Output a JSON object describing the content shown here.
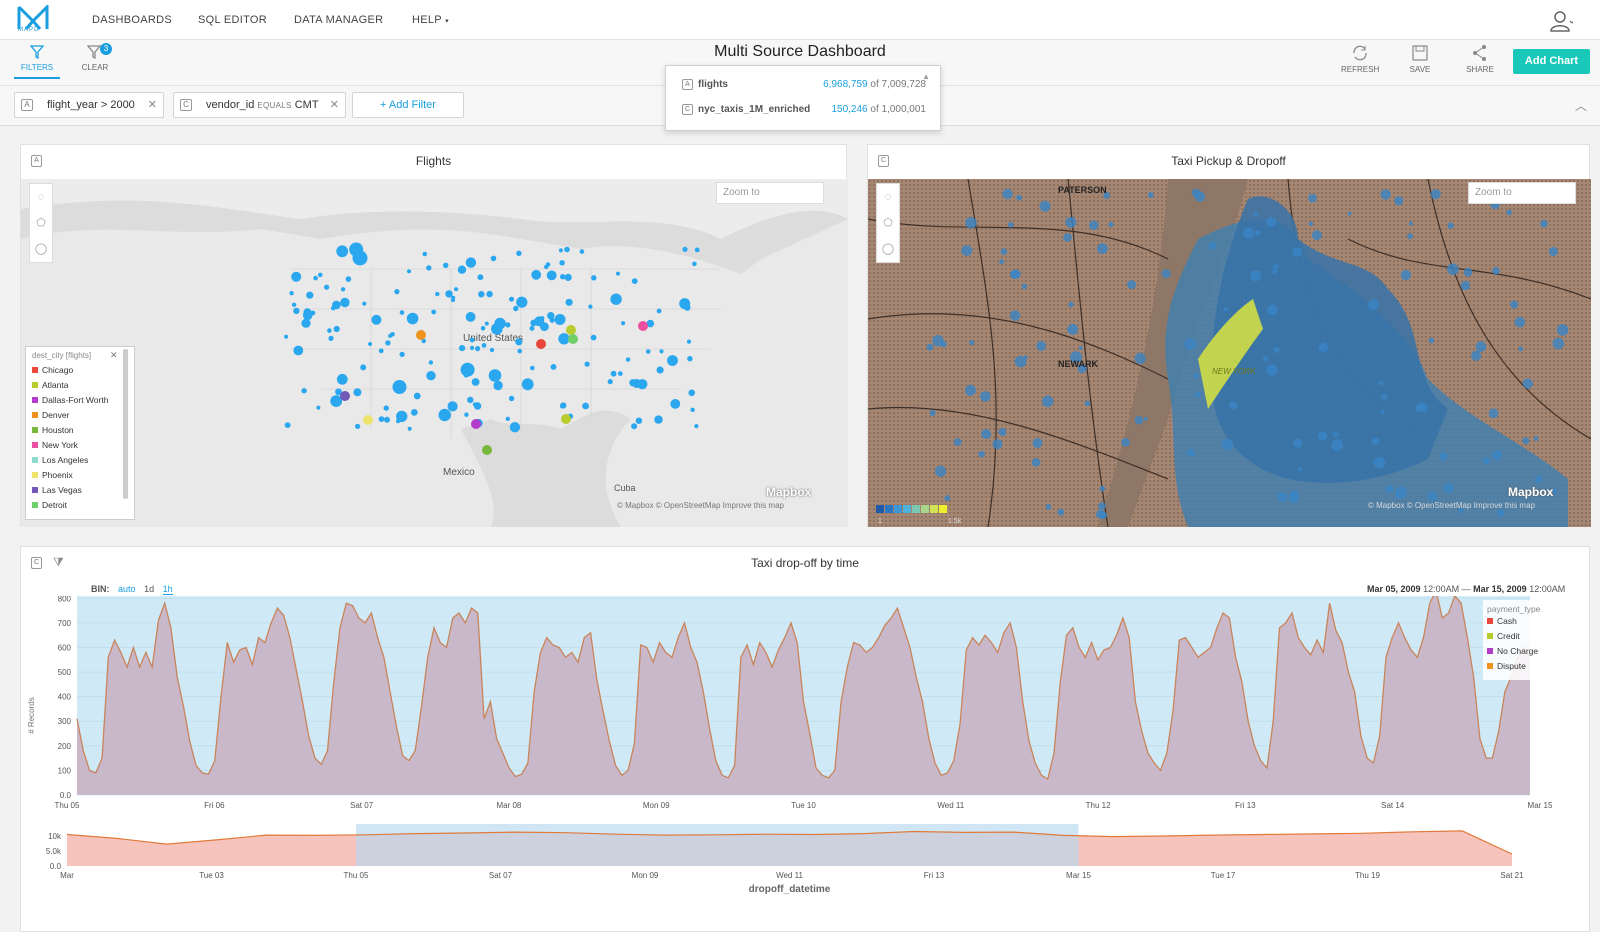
{
  "nav": {
    "logo_text": "MAPD",
    "links": [
      "DASHBOARDS",
      "SQL EDITOR",
      "DATA MANAGER",
      "HELP"
    ]
  },
  "toolbar": {
    "filters_label": "FILTERS",
    "clear_label": "CLEAR",
    "clear_badge": "3",
    "title": "Multi Source Dashboard",
    "refresh_label": "REFRESH",
    "save_label": "SAVE",
    "share_label": "SHARE",
    "add_chart_label": "Add Chart"
  },
  "filters": [
    {
      "field": "flight_year",
      "op": ">",
      "value": "2000"
    },
    {
      "field": "vendor_id",
      "op": "EQUALS",
      "value": "CMT"
    }
  ],
  "add_filter_label": "+ Add Filter",
  "counts": [
    {
      "table": "flights",
      "filtered": "6,968,759",
      "total": "of 7,009,728"
    },
    {
      "table": "nyc_taxis_1M_enriched",
      "filtered": "150,246",
      "total": "of 1,000,001"
    }
  ],
  "flights_panel": {
    "title": "Flights",
    "zoom_placeholder": "Zoom to",
    "labels": {
      "us": "United States",
      "mexico": "Mexico",
      "cuba": "Cuba"
    },
    "attribution": "© Mapbox  © OpenStreetMap  Improve this map",
    "mapbox": "Mapbox",
    "legend_title": "dest_city [flights]",
    "legend": [
      {
        "name": "Chicago",
        "color": "#e8473b"
      },
      {
        "name": "Atlanta",
        "color": "#b9cc2e"
      },
      {
        "name": "Dallas-Fort Worth",
        "color": "#b23bc9"
      },
      {
        "name": "Denver",
        "color": "#f0931e"
      },
      {
        "name": "Houston",
        "color": "#79b83c"
      },
      {
        "name": "New York",
        "color": "#ea4fa0"
      },
      {
        "name": "Los Angeles",
        "color": "#8fdccf"
      },
      {
        "name": "Phoenix",
        "color": "#eee46b"
      },
      {
        "name": "Las Vegas",
        "color": "#7358b8"
      },
      {
        "name": "Detroit",
        "color": "#6fcf6b"
      }
    ]
  },
  "taxi_panel": {
    "title": "Taxi Pickup & Dropoff",
    "zoom_placeholder": "Zoom to",
    "labels": {
      "paterson": "PATERSON",
      "newark": "NEWARK",
      "newyork": "NEW YORK"
    },
    "attribution": "© Mapbox  © OpenStreetMap  Improve this map",
    "mapbox": "Mapbox",
    "scale_min": "1",
    "scale_max": "1.5k",
    "scale_colors": [
      "#1e5aa8",
      "#2a78c4",
      "#3b97d8",
      "#4fb3dc",
      "#7bc7b2",
      "#a9d68a",
      "#d1e255",
      "#eef02c"
    ]
  },
  "time_panel": {
    "title": "Taxi drop-off by time",
    "bin_label": "BIN:",
    "bin_options": [
      "auto",
      "1d",
      "1h"
    ],
    "range_start": "Mar 05, 2009",
    "range_start_time": "12:00AM",
    "range_sep": "—",
    "range_end": "Mar 15, 2009",
    "range_end_time": "12:00AM",
    "legend_title": "payment_type",
    "legend": [
      {
        "name": "Cash",
        "color": "#e8473b"
      },
      {
        "name": "Credit",
        "color": "#b9cc2e"
      },
      {
        "name": "No Charge",
        "color": "#b23bc9"
      },
      {
        "name": "Dispute",
        "color": "#f0931e"
      }
    ]
  },
  "chart_data": [
    {
      "type": "area",
      "title": "Taxi drop-off by time",
      "xlabel": "",
      "ylabel": "# Records",
      "ylim": [
        0,
        850
      ],
      "yticks": [
        "0.0",
        "100",
        "200",
        "300",
        "400",
        "500",
        "600",
        "700",
        "800"
      ],
      "xticks": [
        "Thu 05",
        "Fri 06",
        "Sat 07",
        "Mar 08",
        "Mon 09",
        "Tue 10",
        "Wed 11",
        "Thu 12",
        "Fri 13",
        "Sat 14",
        "Mar 15"
      ],
      "x_days": 10,
      "grid": true,
      "series": [
        {
          "name": "Cash",
          "values": [
            310,
            180,
            100,
            90,
            150,
            560,
            630,
            580,
            520,
            600,
            520,
            580,
            520,
            710,
            780,
            680,
            480,
            360,
            220,
            120,
            90,
            85,
            140,
            400,
            620,
            540,
            590,
            600,
            530,
            640,
            620,
            700,
            760,
            730,
            640,
            510,
            380,
            240,
            150,
            125,
            180,
            460,
            680,
            780,
            770,
            720,
            700,
            740,
            640,
            560,
            420,
            280,
            160,
            140,
            180,
            360,
            560,
            680,
            620,
            600,
            720,
            740,
            700,
            760,
            740,
            310,
            380,
            230,
            170,
            110,
            75,
            85,
            130,
            420,
            580,
            640,
            610,
            600,
            560,
            580,
            540,
            640,
            660,
            470,
            340,
            220,
            120,
            80,
            100,
            210,
            610,
            600,
            540,
            620,
            580,
            560,
            640,
            700,
            600,
            540,
            420,
            270,
            140,
            80,
            70,
            120,
            560,
            610,
            530,
            620,
            580,
            520,
            590,
            640,
            700,
            620,
            380,
            250,
            110,
            80,
            70,
            100,
            380,
            520,
            620,
            610,
            580,
            600,
            640,
            690,
            720,
            760,
            680,
            600,
            480,
            380,
            230,
            130,
            80,
            90,
            140,
            290,
            590,
            640,
            610,
            650,
            620,
            580,
            660,
            700,
            600,
            380,
            220,
            130,
            80,
            65,
            170,
            460,
            650,
            680,
            600,
            560,
            620,
            550,
            590,
            600,
            650,
            720,
            640,
            380,
            260,
            170,
            130,
            100,
            170,
            340,
            630,
            640,
            600,
            560,
            580,
            600,
            680,
            740,
            720,
            560,
            460,
            300,
            200,
            140,
            110,
            300,
            680,
            700,
            740,
            640,
            600,
            570,
            630,
            580,
            780,
            670,
            620,
            500,
            420,
            240,
            150,
            130,
            240,
            560,
            640,
            700,
            640,
            590,
            560,
            640,
            780,
            830,
            720,
            740,
            810,
            780,
            640,
            480,
            230,
            150,
            150,
            260,
            420,
            480,
            560,
            600,
            560
          ]
        }
      ]
    },
    {
      "type": "area",
      "title": "",
      "xlabel": "dropoff_datetime",
      "ylabel": "",
      "ylim": [
        0,
        12000
      ],
      "yticks": [
        "0.0",
        "5.0k",
        "10k"
      ],
      "xticks": [
        "Mar",
        "Tue 03",
        "Thu 05",
        "Sat 07",
        "Mon 09",
        "Wed 11",
        "Fri 13",
        "Mar 15",
        "Tue 17",
        "Thu 19",
        "Sat 21"
      ],
      "brush": [
        "Thu 05",
        "Mar 15"
      ],
      "series": [
        {
          "name": "",
          "values": [
            10500,
            9200,
            7300,
            8700,
            10300,
            10200,
            10400,
            10800,
            11000,
            11300,
            11100,
            10600,
            10300,
            10400,
            10600,
            10500,
            10800,
            11500,
            11200,
            11300,
            10200,
            9800,
            10000,
            10300,
            10500,
            10700,
            10900,
            11400,
            11700,
            4000
          ]
        }
      ]
    }
  ]
}
